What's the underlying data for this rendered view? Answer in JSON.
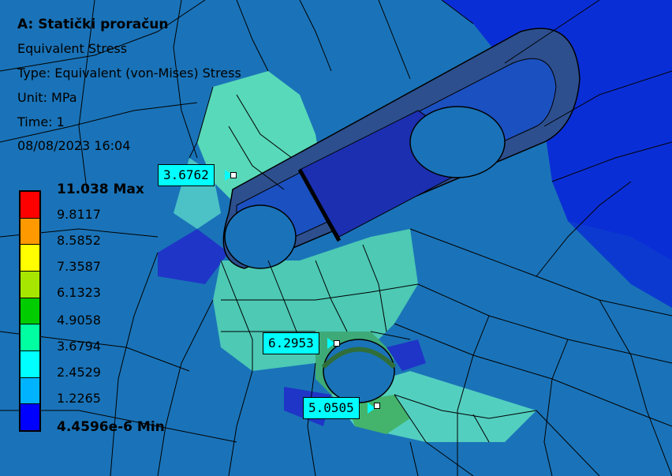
{
  "analysis": {
    "title": "A: Statički proračun",
    "result": "Equivalent Stress",
    "type": "Type: Equivalent (von-Mises) Stress",
    "unit": "Unit: MPa",
    "time": "Time: 1",
    "date": "08/08/2023 16:04"
  },
  "legend": {
    "max_label": "11.038 Max",
    "min_label": "4.4596e-6 Min",
    "levels": [
      "9.8117",
      "8.5852",
      "7.3587",
      "6.1323",
      "4.9058",
      "3.6794",
      "2.4529",
      "1.2265"
    ],
    "colors": [
      "#ff0000",
      "#ff9900",
      "#ffff00",
      "#a6e600",
      "#00cc00",
      "#00ffa0",
      "#00ffff",
      "#00b3ff",
      "#0000ff"
    ]
  },
  "probes": [
    {
      "value": "3.6762"
    },
    {
      "value": "6.2953"
    },
    {
      "value": "5.0505"
    }
  ],
  "contour_colors": {
    "background": "#1a73b8",
    "dark_blue": "#0a2ed6",
    "mid_blue": "#1d8fd0",
    "cyan_green": "#4fd7b8",
    "green": "#3fb870",
    "slot_face": "#2a3c6a"
  }
}
